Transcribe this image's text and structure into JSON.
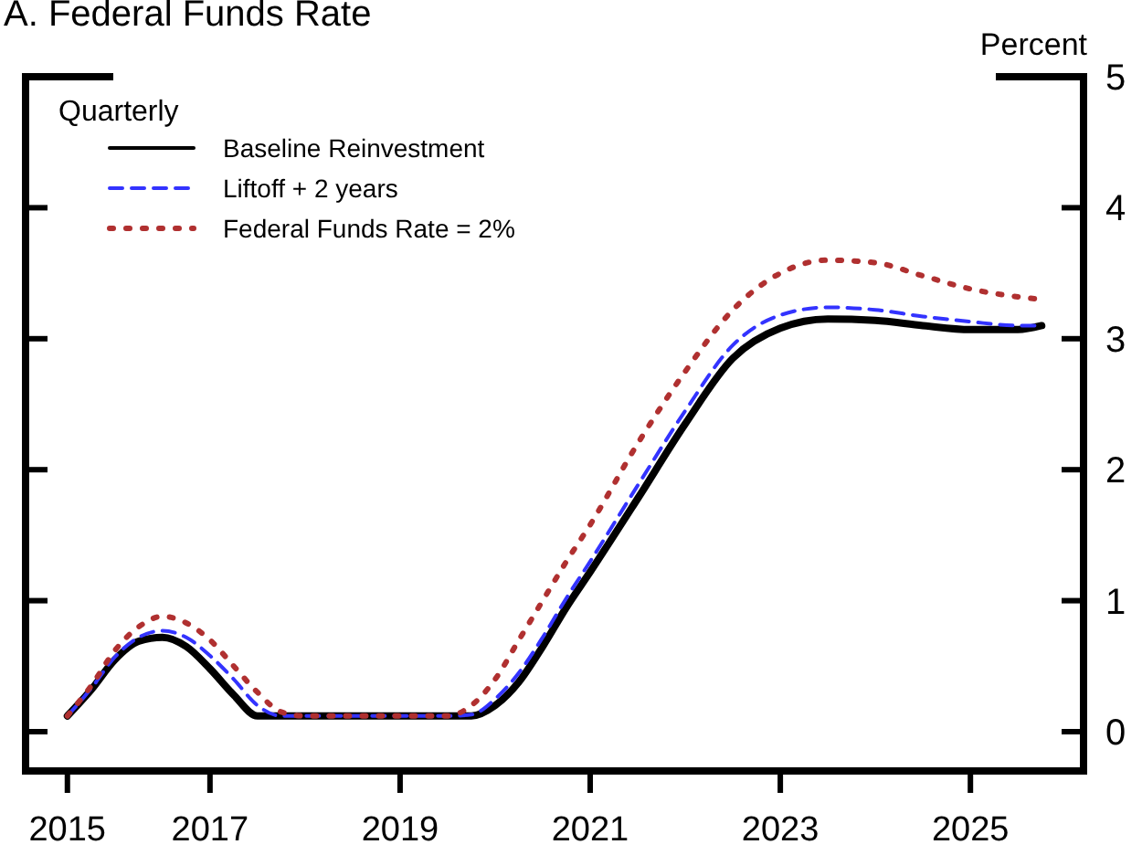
{
  "chart_data": {
    "type": "line",
    "title": "A. Federal Funds Rate",
    "ylabel": "Percent",
    "legend_title": "Quarterly",
    "legend": "top left",
    "grid": false,
    "xlim": [
      2015.06,
      2026.19
    ],
    "xticks": [
      {
        "value": 2015.5,
        "label": "2015"
      },
      2017,
      2019,
      2021,
      2023,
      2025
    ],
    "ylim": [
      -0.3,
      5
    ],
    "yticks": [
      0,
      1,
      2,
      3,
      4,
      5
    ],
    "series": [
      {
        "name": "Baseline Reinvestment",
        "color": "#000000",
        "line_style": "solid",
        "x": [
          2015.5,
          2015.75,
          2016,
          2016.25,
          2016.5,
          2016.75,
          2017,
          2017.25,
          2017.5,
          2018,
          2018.5,
          2019,
          2019.5,
          2019.75,
          2020,
          2020.25,
          2020.5,
          2020.75,
          2021,
          2021.5,
          2022,
          2022.5,
          2023,
          2023.5,
          2024,
          2024.5,
          2025,
          2025.5,
          2025.75
        ],
        "values": [
          0.12,
          0.32,
          0.55,
          0.69,
          0.72,
          0.65,
          0.48,
          0.28,
          0.12,
          0.12,
          0.12,
          0.12,
          0.12,
          0.12,
          0.2,
          0.38,
          0.65,
          0.95,
          1.22,
          1.78,
          2.35,
          2.85,
          3.08,
          3.15,
          3.14,
          3.1,
          3.07,
          3.07,
          3.1
        ]
      },
      {
        "name": "Liftoff + 2 years",
        "color": "#3333ff",
        "line_style": "dashed",
        "x": [
          2015.5,
          2015.75,
          2016,
          2016.25,
          2016.5,
          2016.75,
          2017,
          2017.25,
          2017.5,
          2017.75,
          2018,
          2018.5,
          2019,
          2019.5,
          2019.75,
          2020,
          2020.25,
          2020.5,
          2020.75,
          2021,
          2021.5,
          2022,
          2022.5,
          2023,
          2023.5,
          2024,
          2024.5,
          2025,
          2025.5,
          2025.75
        ],
        "values": [
          0.12,
          0.33,
          0.57,
          0.72,
          0.77,
          0.72,
          0.58,
          0.4,
          0.2,
          0.12,
          0.12,
          0.12,
          0.12,
          0.12,
          0.13,
          0.25,
          0.45,
          0.72,
          1.02,
          1.3,
          1.88,
          2.45,
          2.95,
          3.18,
          3.24,
          3.22,
          3.17,
          3.13,
          3.1,
          3.1
        ]
      },
      {
        "name": "Federal Funds Rate = 2%",
        "color": "#b03030",
        "line_style": "dotted",
        "x": [
          2015.5,
          2015.75,
          2016,
          2016.25,
          2016.5,
          2016.75,
          2017,
          2017.25,
          2017.5,
          2017.75,
          2018,
          2018.5,
          2019,
          2019.5,
          2019.75,
          2020,
          2020.25,
          2020.5,
          2020.75,
          2021,
          2021.5,
          2022,
          2022.5,
          2023,
          2023.5,
          2024,
          2024.5,
          2025,
          2025.5,
          2025.75
        ],
        "values": [
          0.12,
          0.35,
          0.62,
          0.8,
          0.88,
          0.83,
          0.7,
          0.5,
          0.3,
          0.15,
          0.12,
          0.12,
          0.12,
          0.12,
          0.2,
          0.4,
          0.7,
          1.0,
          1.3,
          1.58,
          2.2,
          2.75,
          3.22,
          3.5,
          3.6,
          3.58,
          3.48,
          3.38,
          3.32,
          3.3
        ]
      }
    ]
  }
}
